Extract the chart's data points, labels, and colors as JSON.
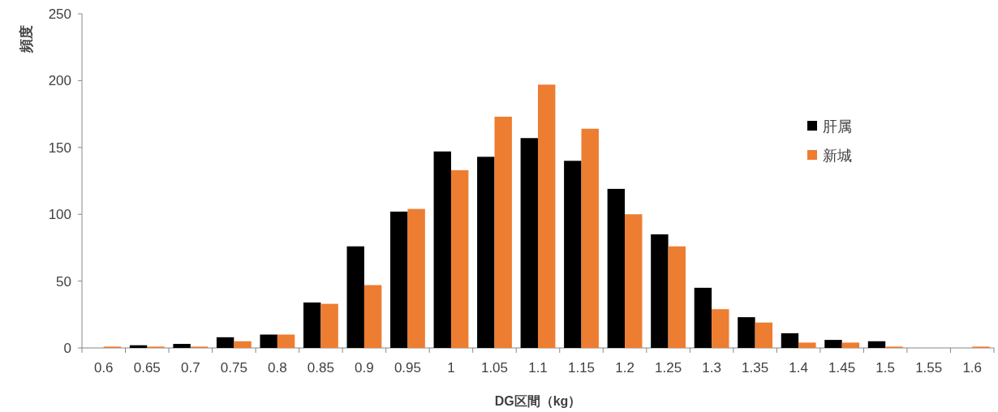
{
  "chart_data": {
    "type": "bar",
    "xlabel": "DG区間（kg）",
    "ylabel": "頻度",
    "categories": [
      "0.6",
      "0.65",
      "0.7",
      "0.75",
      "0.8",
      "0.85",
      "0.9",
      "0.95",
      "1",
      "1.05",
      "1.1",
      "1.15",
      "1.2",
      "1.25",
      "1.3",
      "1.35",
      "1.4",
      "1.45",
      "1.5",
      "1.55",
      "1.6"
    ],
    "series": [
      {
        "name": "肝属",
        "color": "#000000",
        "values": [
          0,
          2,
          3,
          8,
          10,
          34,
          76,
          102,
          147,
          143,
          157,
          140,
          119,
          85,
          45,
          23,
          11,
          6,
          5,
          0,
          0
        ]
      },
      {
        "name": "新城",
        "color": "#ed7d31",
        "values": [
          1,
          1,
          1,
          5,
          10,
          33,
          47,
          104,
          133,
          173,
          197,
          164,
          100,
          76,
          29,
          19,
          4,
          4,
          1,
          0,
          1
        ]
      }
    ],
    "ylim": [
      0,
      250
    ],
    "yticks": [
      0,
      50,
      100,
      150,
      200,
      250
    ],
    "grid": false,
    "legend": "right"
  }
}
